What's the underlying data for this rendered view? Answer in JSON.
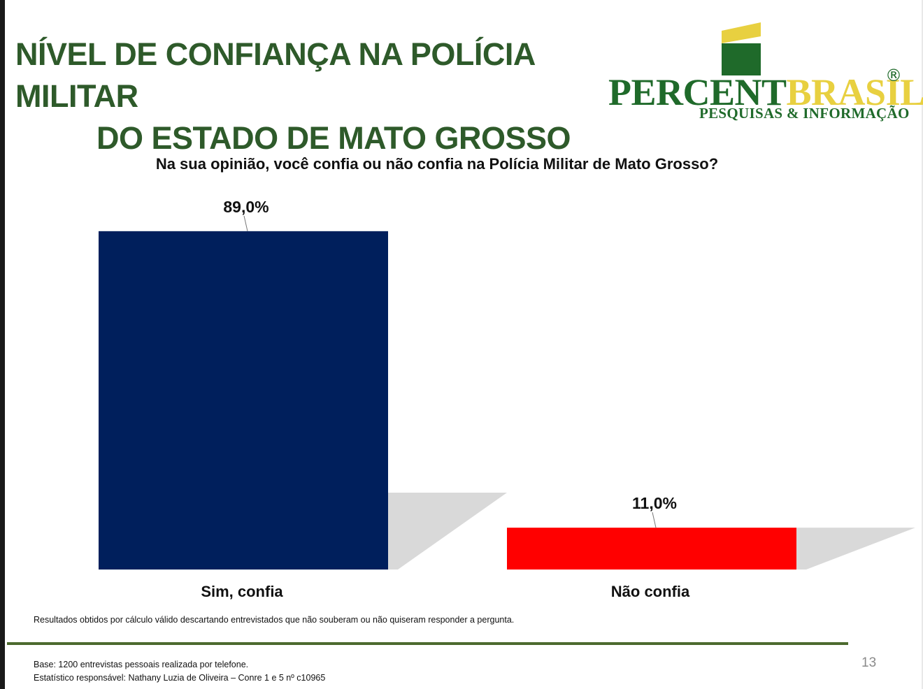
{
  "title": {
    "line1": "NÍVEL DE CONFIANÇA NA POLÍCIA MILITAR",
    "line2": "DO ESTADO DE MATO GROSSO"
  },
  "logo": {
    "word_part1": "PERCENT",
    "word_part2": "BRASIL",
    "registered": "®",
    "subtitle": "PESQUISAS & INFORMAÇÃO",
    "colors": {
      "green": "#1f6a2a",
      "yellow": "#e8d040"
    }
  },
  "question": "Na sua opinião, você confia ou não confia na Polícia Militar de Mato Grosso?",
  "chart_data": {
    "type": "bar",
    "categories": [
      "Sim, confia",
      "Não confia"
    ],
    "values": [
      89.0,
      11.0
    ],
    "value_labels": [
      "89,0%",
      "11,0%"
    ],
    "colors": [
      "#001f5c",
      "#ff0000"
    ],
    "ylim": [
      0,
      100
    ],
    "grid": false,
    "legend": "none"
  },
  "footnote": "Resultados obtidos por cálculo válido descartando entrevistados que não souberam ou não quiseram responder a pergunta.",
  "base": {
    "line1": "Base: 1200 entrevistas pessoais realizada por telefone.",
    "line2": "Estatístico responsável: Nathany Luzia de Oliveira – Conre 1 e 5 nº c10965"
  },
  "page_number": "13"
}
